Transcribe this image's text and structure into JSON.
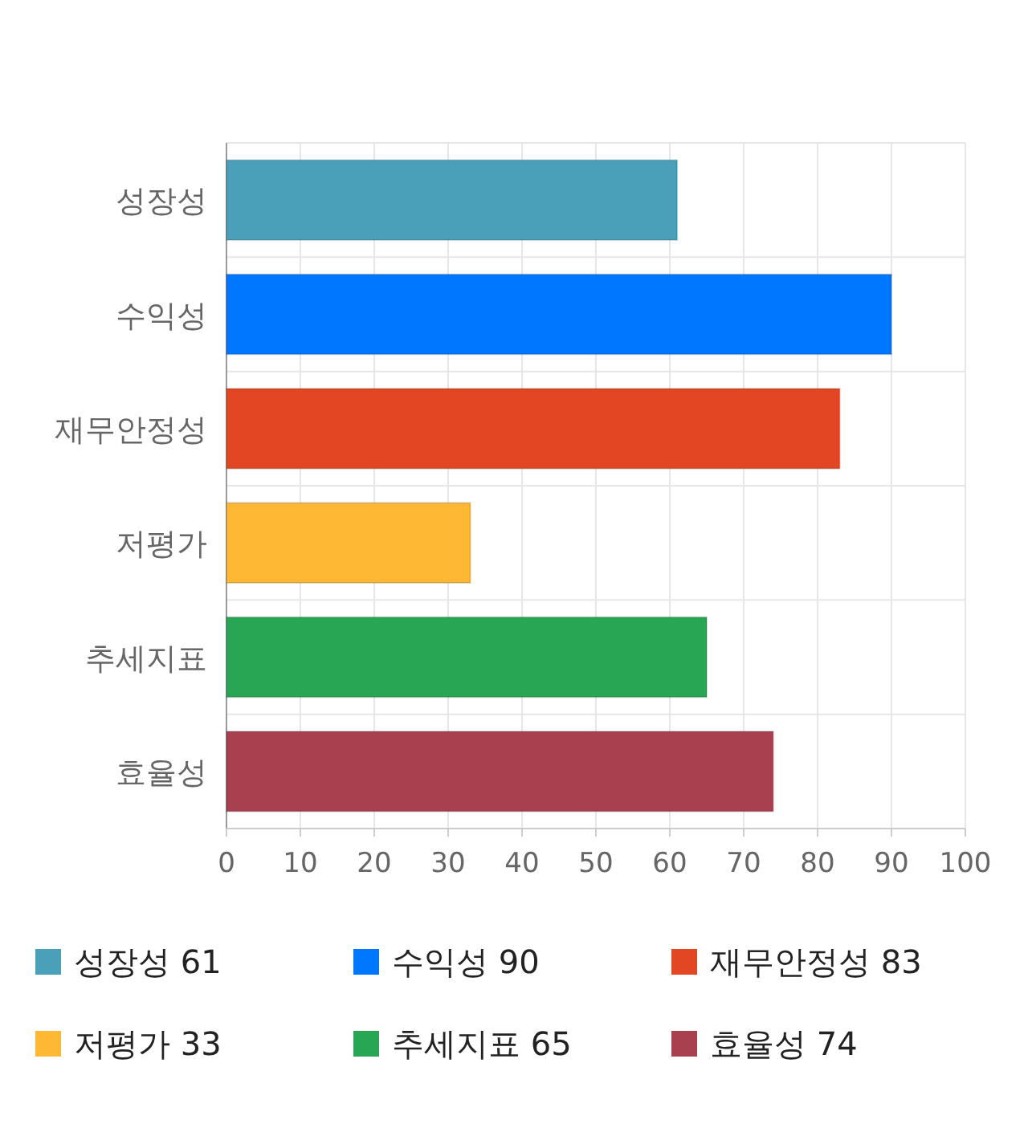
{
  "chart_data": {
    "type": "bar",
    "orientation": "horizontal",
    "stacked": true,
    "categories": [
      "성장성",
      "수익성",
      "재무안정성",
      "저평가",
      "추세지표",
      "효율성"
    ],
    "series": [
      {
        "name": "성장성 61",
        "color": "#4ba0b9",
        "values": [
          61,
          null,
          null,
          null,
          null,
          null
        ]
      },
      {
        "name": "수익성 90",
        "color": "#0077ff",
        "values": [
          null,
          90,
          null,
          null,
          null,
          null
        ]
      },
      {
        "name": "재무안정성 83",
        "color": "#e34623",
        "values": [
          null,
          null,
          83,
          null,
          null,
          null
        ]
      },
      {
        "name": "저평가 33",
        "color": "#ffb833",
        "values": [
          null,
          null,
          null,
          33,
          null,
          null
        ]
      },
      {
        "name": "추세지표 65",
        "color": "#28a654",
        "values": [
          null,
          null,
          null,
          null,
          65,
          null
        ]
      },
      {
        "name": "효율성 74",
        "color": "#a8404f",
        "values": [
          null,
          null,
          null,
          null,
          null,
          74
        ]
      }
    ],
    "xlim": [
      0,
      100
    ],
    "xticks": [
      0,
      10,
      20,
      30,
      40,
      50,
      60,
      70,
      80,
      90,
      100
    ],
    "grid": true,
    "legend": "bottom"
  }
}
